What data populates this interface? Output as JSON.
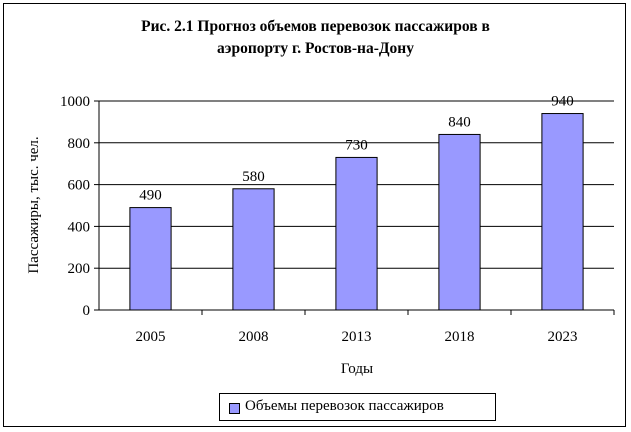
{
  "chart_data": {
    "type": "bar",
    "title_line1": "Рис. 2.1 Прогноз объемов перевозок пассажиров в",
    "title_line2": "аэропорту г. Ростов-на-Дону",
    "xlabel": "Годы",
    "ylabel": "Пассажиры, тыс. чел.",
    "categories": [
      "2005",
      "2008",
      "2013",
      "2018",
      "2023"
    ],
    "series": [
      {
        "name": "Объемы перевозок пассажиров",
        "values": [
          490,
          580,
          730,
          840,
          940
        ]
      }
    ],
    "ylim": [
      0,
      1000
    ],
    "yticks": [
      0,
      200,
      400,
      600,
      800,
      1000
    ],
    "grid": true,
    "legend": "bottom",
    "bar_color": "#9999ff"
  }
}
